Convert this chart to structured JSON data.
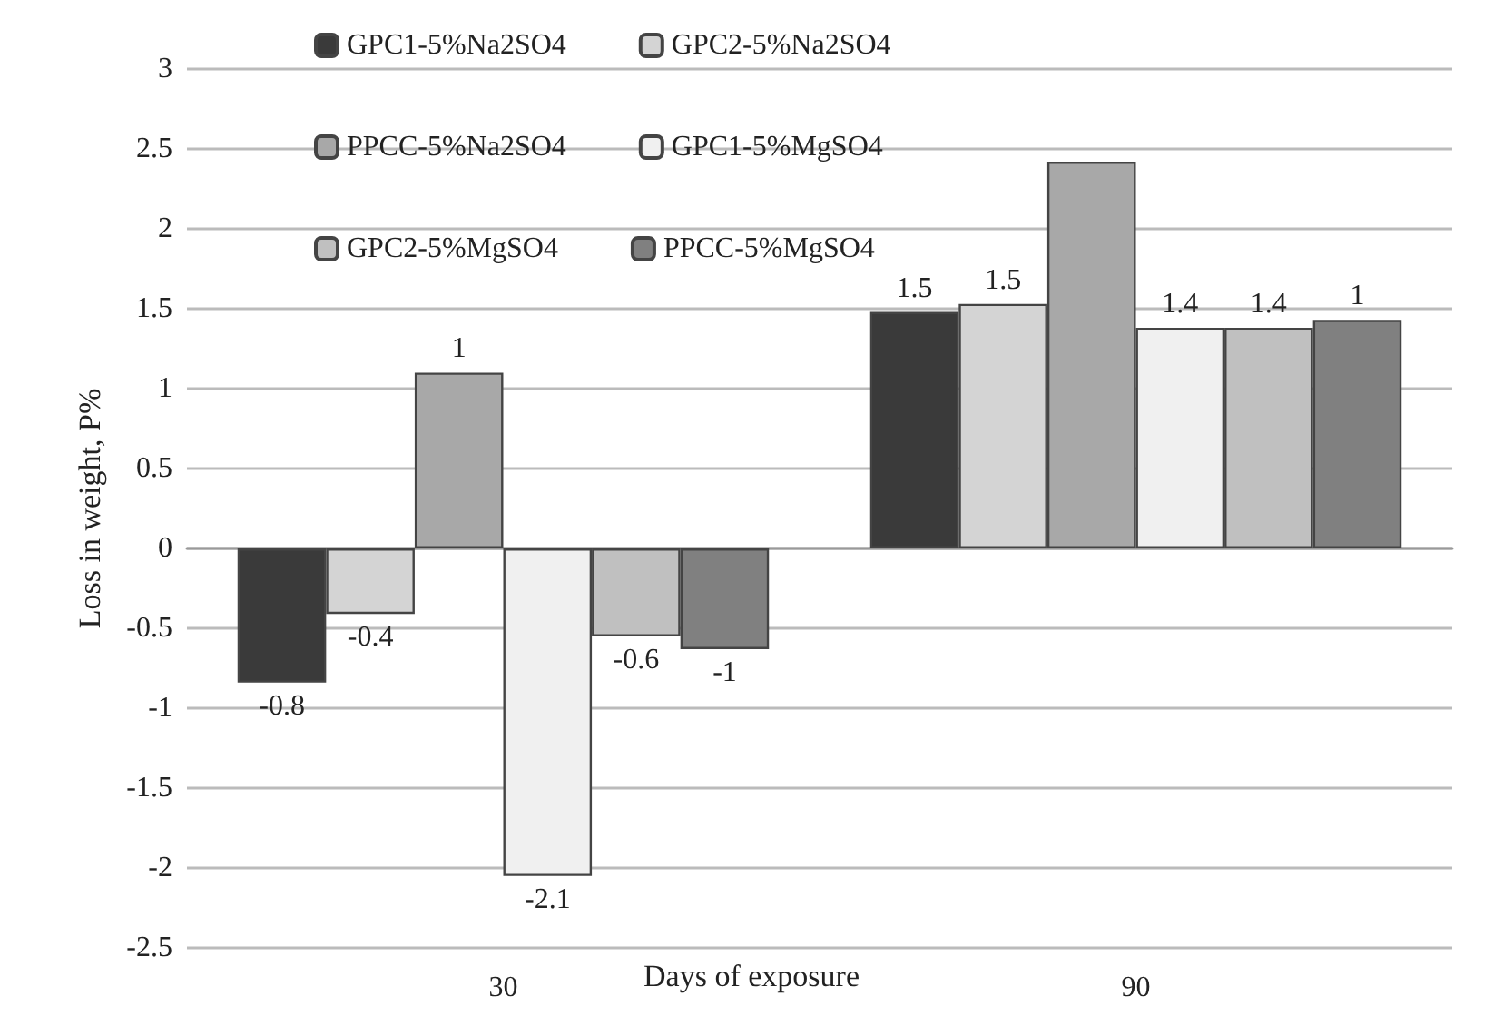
{
  "chart_data": {
    "type": "bar",
    "xlabel": "Days of exposure",
    "ylabel": "Loss in weight, P%",
    "categories": [
      "30",
      "90"
    ],
    "series": [
      {
        "name": "GPC1-5%Na2SO4",
        "color": "#3a3a3a",
        "values": [
          -0.84,
          1.48
        ],
        "value_labels": [
          "-0.8",
          "1.5"
        ]
      },
      {
        "name": "GPC2-5%Na2SO4",
        "color": "#d4d4d4",
        "values": [
          -0.41,
          1.53
        ],
        "value_labels": [
          "-0.4",
          "1.5"
        ]
      },
      {
        "name": "PPCC-5%Na2SO4",
        "color": "#a8a8a8",
        "values": [
          1.1,
          2.42
        ],
        "value_labels": [
          "1",
          null
        ]
      },
      {
        "name": "GPC1-5%MgSO4",
        "color": "#f0f0f0",
        "values": [
          -2.05,
          1.38
        ],
        "value_labels": [
          "-2.1",
          "1.4"
        ]
      },
      {
        "name": "GPC2-5%MgSO4",
        "color": "#c0c0c0",
        "values": [
          -0.55,
          1.38
        ],
        "value_labels": [
          "-0.6",
          "1.4"
        ]
      },
      {
        "name": "PPCC-5%MgSO4",
        "color": "#808080",
        "values": [
          -0.63,
          1.43
        ],
        "value_labels": [
          "-1",
          "1"
        ]
      }
    ],
    "ylim": [
      -2.5,
      3
    ],
    "yticks": [
      -2.5,
      -2,
      -1.5,
      -1,
      -0.5,
      0,
      0.5,
      1,
      1.5,
      2,
      2.5,
      3
    ],
    "grid": "y",
    "legend": "top"
  }
}
